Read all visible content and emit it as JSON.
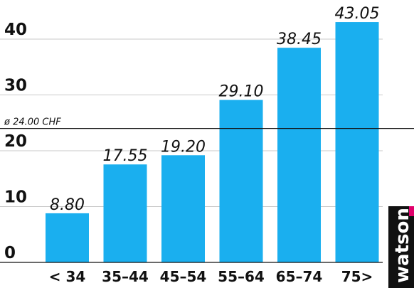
{
  "chart_data": {
    "type": "bar",
    "categories": [
      "< 34",
      "35–44",
      "45–54",
      "55–64",
      "65–74",
      "75>"
    ],
    "values": [
      8.8,
      17.55,
      19.2,
      29.1,
      38.45,
      43.05
    ],
    "value_labels": [
      "8.80",
      "17.55",
      "19.20",
      "29.10",
      "38.45",
      "43.05"
    ],
    "yticks": [
      0,
      10,
      20,
      30,
      40
    ],
    "ylim": [
      0,
      44
    ],
    "grid": true,
    "reference_line": {
      "value": 24.0,
      "label": "ø 24.00 CHF"
    },
    "bar_color": "#1AAFEF",
    "title": "",
    "xlabel": "",
    "ylabel": ""
  },
  "brand": {
    "logo_text": "watson",
    "logo_bg": "#111111",
    "logo_accent": "#E0006B"
  }
}
